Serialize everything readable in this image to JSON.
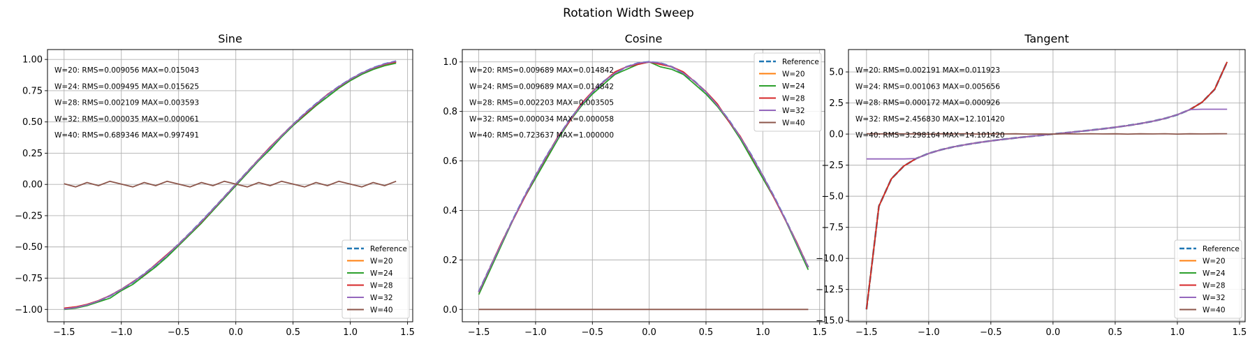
{
  "figure": {
    "suptitle": "Rotation Width Sweep"
  },
  "colors": {
    "Reference": "#1f77b4",
    "W=20": "#ff7f0e",
    "W=24": "#2ca02c",
    "W=28": "#d62728",
    "W=32": "#9467bd",
    "W=40": "#8c564b",
    "grid": "#b0b0b0"
  },
  "chart_data": [
    {
      "type": "line",
      "title": "Sine",
      "xlabel": "",
      "ylabel": "",
      "xlim": [
        -1.645,
        1.545
      ],
      "ylim": [
        -1.099,
        1.079
      ],
      "xticks": [
        -1.5,
        -1.0,
        -0.5,
        0.0,
        0.5,
        1.0,
        1.5
      ],
      "xtick_labels": [
        "−1.5",
        "−1.0",
        "−0.5",
        "0.0",
        "0.5",
        "1.0",
        "1.5"
      ],
      "yticks": [
        -1.0,
        -0.75,
        -0.5,
        -0.25,
        0.0,
        0.25,
        0.5,
        0.75,
        1.0
      ],
      "ytick_labels": [
        "−1.00",
        "−0.75",
        "−0.50",
        "−0.25",
        "0.00",
        "0.25",
        "0.50",
        "0.75",
        "1.00"
      ],
      "grid": true,
      "legend": "lower right",
      "annotations": [
        "W=20: RMS=0.009056 MAX=0.015043",
        "W=24: RMS=0.009495 MAX=0.015625",
        "W=28: RMS=0.002109 MAX=0.003593",
        "W=32: RMS=0.000035 MAX=0.000061",
        "W=40: RMS=0.689346 MAX=0.997491"
      ],
      "x": [
        -1.5,
        -1.4,
        -1.3,
        -1.2,
        -1.1,
        -1.0,
        -0.9,
        -0.8,
        -0.7,
        -0.6,
        -0.5,
        -0.4,
        -0.3,
        -0.2,
        -0.1,
        0.0,
        0.1,
        0.2,
        0.3,
        0.4,
        0.5,
        0.6,
        0.7,
        0.8,
        0.9,
        1.0,
        1.1,
        1.2,
        1.3,
        1.4
      ],
      "series": [
        {
          "name": "Reference",
          "dashed": true,
          "values": [
            -0.997,
            -0.985,
            -0.964,
            -0.932,
            -0.891,
            -0.841,
            -0.783,
            -0.717,
            -0.644,
            -0.565,
            -0.479,
            -0.389,
            -0.296,
            -0.199,
            -0.1,
            0.0,
            0.1,
            0.199,
            0.296,
            0.389,
            0.479,
            0.565,
            0.644,
            0.717,
            0.783,
            0.841,
            0.891,
            0.932,
            0.964,
            0.985
          ]
        },
        {
          "name": "W=20",
          "values": [
            -0.99,
            -0.98,
            -0.96,
            -0.93,
            -0.89,
            -0.84,
            -0.78,
            -0.72,
            -0.64,
            -0.56,
            -0.48,
            -0.39,
            -0.3,
            -0.2,
            -0.1,
            0.0,
            0.1,
            0.2,
            0.3,
            0.39,
            0.48,
            0.56,
            0.64,
            0.72,
            0.78,
            0.84,
            0.89,
            0.93,
            0.96,
            0.98
          ]
        },
        {
          "name": "W=24",
          "values": [
            -1.0,
            -0.99,
            -0.97,
            -0.94,
            -0.91,
            -0.85,
            -0.8,
            -0.73,
            -0.66,
            -0.58,
            -0.49,
            -0.4,
            -0.31,
            -0.21,
            -0.11,
            -0.01,
            0.09,
            0.19,
            0.28,
            0.38,
            0.47,
            0.55,
            0.63,
            0.7,
            0.77,
            0.83,
            0.88,
            0.92,
            0.95,
            0.97
          ]
        },
        {
          "name": "W=28",
          "values": [
            -0.99,
            -0.98,
            -0.96,
            -0.93,
            -0.89,
            -0.84,
            -0.78,
            -0.72,
            -0.64,
            -0.56,
            -0.48,
            -0.39,
            -0.3,
            -0.2,
            -0.1,
            0.0,
            0.1,
            0.2,
            0.3,
            0.39,
            0.48,
            0.56,
            0.64,
            0.72,
            0.78,
            0.84,
            0.89,
            0.93,
            0.96,
            0.98
          ]
        },
        {
          "name": "W=32",
          "values": [
            -0.997,
            -0.985,
            -0.964,
            -0.932,
            -0.891,
            -0.841,
            -0.783,
            -0.717,
            -0.644,
            -0.565,
            -0.479,
            -0.389,
            -0.296,
            -0.199,
            -0.1,
            0.0,
            0.1,
            0.199,
            0.296,
            0.389,
            0.479,
            0.565,
            0.644,
            0.717,
            0.783,
            0.841,
            0.891,
            0.932,
            0.964,
            0.985
          ]
        },
        {
          "name": "W=40",
          "values": [
            0.005,
            -0.02,
            0.015,
            -0.01,
            0.025,
            0.003,
            -0.02,
            0.015,
            -0.01,
            0.025,
            0.003,
            -0.02,
            0.015,
            -0.01,
            0.025,
            0.003,
            -0.02,
            0.015,
            -0.01,
            0.025,
            0.003,
            -0.02,
            0.015,
            -0.01,
            0.025,
            0.003,
            -0.02,
            0.015,
            -0.01,
            0.025
          ]
        }
      ]
    },
    {
      "type": "line",
      "title": "Cosine",
      "xlabel": "",
      "ylabel": "",
      "xlim": [
        -1.645,
        1.545
      ],
      "ylim": [
        -0.05,
        1.05
      ],
      "xticks": [
        -1.5,
        -1.0,
        -0.5,
        0.0,
        0.5,
        1.0,
        1.5
      ],
      "xtick_labels": [
        "−1.5",
        "−1.0",
        "−0.5",
        "0.0",
        "0.5",
        "1.0",
        "1.5"
      ],
      "yticks": [
        0.0,
        0.2,
        0.4,
        0.6,
        0.8,
        1.0
      ],
      "ytick_labels": [
        "0.0",
        "0.2",
        "0.4",
        "0.6",
        "0.8",
        "1.0"
      ],
      "grid": true,
      "legend": "upper right",
      "annotations": [
        "W=20: RMS=0.009689 MAX=0.014842",
        "W=24: RMS=0.009689 MAX=0.014842",
        "W=28: RMS=0.002203 MAX=0.003505",
        "W=32: RMS=0.000034 MAX=0.000058",
        "W=40: RMS=0.723637 MAX=1.000000"
      ],
      "x": [
        -1.5,
        -1.4,
        -1.3,
        -1.2,
        -1.1,
        -1.0,
        -0.9,
        -0.8,
        -0.7,
        -0.6,
        -0.5,
        -0.4,
        -0.3,
        -0.2,
        -0.1,
        0.0,
        0.1,
        0.2,
        0.3,
        0.4,
        0.5,
        0.6,
        0.7,
        0.8,
        0.9,
        1.0,
        1.1,
        1.2,
        1.3,
        1.4
      ],
      "series": [
        {
          "name": "Reference",
          "dashed": true,
          "values": [
            0.071,
            0.17,
            0.267,
            0.362,
            0.454,
            0.54,
            0.622,
            0.697,
            0.765,
            0.825,
            0.878,
            0.921,
            0.955,
            0.98,
            0.995,
            1.0,
            0.995,
            0.98,
            0.955,
            0.921,
            0.878,
            0.825,
            0.765,
            0.697,
            0.622,
            0.54,
            0.454,
            0.362,
            0.267,
            0.17
          ]
        },
        {
          "name": "W=20",
          "values": [
            0.07,
            0.17,
            0.27,
            0.36,
            0.45,
            0.54,
            0.62,
            0.7,
            0.76,
            0.83,
            0.88,
            0.92,
            0.96,
            0.98,
            0.99,
            1.0,
            0.99,
            0.98,
            0.96,
            0.92,
            0.88,
            0.83,
            0.76,
            0.7,
            0.62,
            0.54,
            0.45,
            0.36,
            0.27,
            0.17
          ]
        },
        {
          "name": "W=24",
          "values": [
            0.06,
            0.16,
            0.26,
            0.36,
            0.45,
            0.53,
            0.61,
            0.69,
            0.76,
            0.82,
            0.87,
            0.91,
            0.95,
            0.97,
            0.99,
            1.0,
            0.98,
            0.97,
            0.95,
            0.91,
            0.87,
            0.82,
            0.76,
            0.69,
            0.61,
            0.53,
            0.45,
            0.36,
            0.26,
            0.16
          ]
        },
        {
          "name": "W=28",
          "values": [
            0.07,
            0.17,
            0.27,
            0.36,
            0.45,
            0.54,
            0.62,
            0.7,
            0.76,
            0.83,
            0.88,
            0.92,
            0.96,
            0.98,
            0.99,
            1.0,
            0.99,
            0.98,
            0.96,
            0.92,
            0.88,
            0.83,
            0.76,
            0.7,
            0.62,
            0.54,
            0.45,
            0.36,
            0.27,
            0.17
          ]
        },
        {
          "name": "W=32",
          "values": [
            0.071,
            0.17,
            0.267,
            0.362,
            0.454,
            0.54,
            0.622,
            0.697,
            0.765,
            0.825,
            0.878,
            0.921,
            0.955,
            0.98,
            0.995,
            1.0,
            0.995,
            0.98,
            0.955,
            0.921,
            0.878,
            0.825,
            0.765,
            0.697,
            0.622,
            0.54,
            0.454,
            0.362,
            0.267,
            0.17
          ]
        },
        {
          "name": "W=40",
          "values": [
            0,
            0,
            0,
            0,
            0,
            0,
            0,
            0,
            0,
            0,
            0,
            0,
            0,
            0,
            0,
            0,
            0,
            0,
            0,
            0,
            0,
            0,
            0,
            0,
            0,
            0,
            0,
            0,
            0,
            0
          ]
        }
      ]
    },
    {
      "type": "line",
      "title": "Tangent",
      "xlabel": "",
      "ylabel": "",
      "xlim": [
        -1.645,
        1.545
      ],
      "ylim": [
        -15.1,
        6.8
      ],
      "xticks": [
        -1.5,
        -1.0,
        -0.5,
        0.0,
        0.5,
        1.0,
        1.5
      ],
      "xtick_labels": [
        "−1.5",
        "−1.0",
        "−0.5",
        "0.0",
        "0.5",
        "1.0",
        "1.5"
      ],
      "yticks": [
        -15.0,
        -12.5,
        -10.0,
        -7.5,
        -5.0,
        -2.5,
        0.0,
        2.5,
        5.0
      ],
      "ytick_labels": [
        "−15.0",
        "−12.5",
        "−10.0",
        "−7.5",
        "−5.0",
        "−2.5",
        "0.0",
        "2.5",
        "5.0"
      ],
      "grid": true,
      "legend": "lower right",
      "annotations": [
        "W=20: RMS=0.002191 MAX=0.011923",
        "W=24: RMS=0.001063 MAX=0.005656",
        "W=28: RMS=0.000172 MAX=0.000926",
        "W=32: RMS=2.456830 MAX=12.101420",
        "W=40: RMS=3.298164 MAX=14.101420"
      ],
      "x": [
        -1.5,
        -1.4,
        -1.3,
        -1.2,
        -1.1,
        -1.0,
        -0.9,
        -0.8,
        -0.7,
        -0.6,
        -0.5,
        -0.4,
        -0.3,
        -0.2,
        -0.1,
        0.0,
        0.1,
        0.2,
        0.3,
        0.4,
        0.5,
        0.6,
        0.7,
        0.8,
        0.9,
        1.0,
        1.1,
        1.2,
        1.3,
        1.4
      ],
      "series": [
        {
          "name": "Reference",
          "dashed": true,
          "values": [
            -14.101,
            -5.798,
            -3.602,
            -2.572,
            -1.965,
            -1.557,
            -1.26,
            -1.03,
            -0.842,
            -0.684,
            -0.546,
            -0.423,
            -0.309,
            -0.203,
            -0.1,
            0.0,
            0.1,
            0.203,
            0.309,
            0.423,
            0.546,
            0.684,
            0.842,
            1.03,
            1.26,
            1.557,
            1.965,
            2.572,
            3.602,
            5.798
          ]
        },
        {
          "name": "W=20",
          "values": [
            -14.09,
            -5.8,
            -3.6,
            -2.57,
            -1.96,
            -1.56,
            -1.26,
            -1.03,
            -0.84,
            -0.68,
            -0.55,
            -0.42,
            -0.31,
            -0.2,
            -0.1,
            0.0,
            0.1,
            0.2,
            0.31,
            0.42,
            0.55,
            0.68,
            0.84,
            1.03,
            1.26,
            1.56,
            1.96,
            2.57,
            3.6,
            5.8
          ]
        },
        {
          "name": "W=24",
          "values": [
            -14.1,
            -5.8,
            -3.6,
            -2.57,
            -1.96,
            -1.56,
            -1.26,
            -1.03,
            -0.84,
            -0.68,
            -0.55,
            -0.42,
            -0.31,
            -0.2,
            -0.1,
            0.0,
            0.1,
            0.2,
            0.31,
            0.42,
            0.55,
            0.68,
            0.84,
            1.03,
            1.26,
            1.56,
            1.96,
            2.57,
            3.6,
            5.8
          ]
        },
        {
          "name": "W=28",
          "values": [
            -14.1,
            -5.8,
            -3.6,
            -2.57,
            -1.97,
            -1.56,
            -1.26,
            -1.03,
            -0.84,
            -0.68,
            -0.55,
            -0.42,
            -0.31,
            -0.2,
            -0.1,
            0.0,
            0.1,
            0.2,
            0.31,
            0.42,
            0.55,
            0.68,
            0.84,
            1.03,
            1.26,
            1.56,
            1.97,
            2.57,
            3.6,
            5.8
          ]
        },
        {
          "name": "W=32",
          "values": [
            -2.0,
            -2.0,
            -2.0,
            -2.0,
            -1.97,
            -1.56,
            -1.26,
            -1.03,
            -0.84,
            -0.68,
            -0.55,
            -0.42,
            -0.31,
            -0.2,
            -0.1,
            0.0,
            0.1,
            0.2,
            0.31,
            0.42,
            0.55,
            0.68,
            0.84,
            1.03,
            1.26,
            1.56,
            1.97,
            2.0,
            2.0,
            2.0
          ]
        },
        {
          "name": "W=40",
          "values": [
            0.02,
            0.01,
            0.03,
            0.01,
            0.02,
            0.0,
            0.02,
            0.01,
            0.03,
            0.0,
            0.02,
            0.01,
            0.02,
            0.0,
            0.01,
            0.0,
            0.02,
            0.01,
            0.03,
            0.01,
            0.02,
            0.0,
            0.02,
            0.01,
            0.03,
            0.0,
            0.02,
            0.01,
            0.02,
            0.03
          ]
        }
      ]
    }
  ]
}
